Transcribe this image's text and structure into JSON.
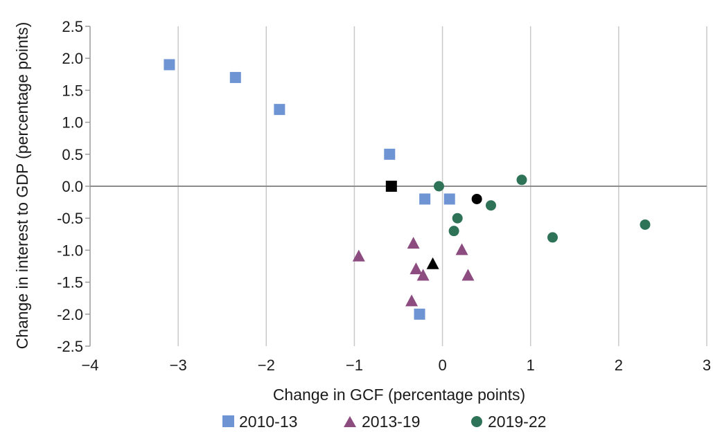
{
  "chart_data": {
    "type": "scatter",
    "title": "",
    "xlabel": "Change in GCF (percentage points)",
    "ylabel": "Change in interest to GDP (percentage points)",
    "xlim": [
      -4,
      3
    ],
    "ylim": [
      -2.5,
      2.5
    ],
    "x_ticks": [
      -4,
      -3,
      -2,
      -1,
      0,
      1,
      2,
      3
    ],
    "x_tick_labels": [
      "−4",
      "−3",
      "−2",
      "−1",
      "0",
      "1",
      "2",
      "3"
    ],
    "y_ticks": [
      2.5,
      2.0,
      1.5,
      1.0,
      0.5,
      0.0,
      -0.5,
      -1.0,
      -1.5,
      -2.0,
      -2.5
    ],
    "y_tick_labels": [
      "2.5",
      "2.0",
      "1.5",
      "1.0",
      "0.5",
      "0.0",
      "-0.5",
      "-1.0",
      "-1.5",
      "-2.0",
      "-2.5"
    ],
    "grid": "vertical",
    "legend_position": "bottom",
    "series": [
      {
        "name": "2010-13",
        "marker": "square",
        "color": "#6f94d4",
        "points": [
          {
            "x": -3.1,
            "y": 1.9
          },
          {
            "x": -2.35,
            "y": 1.7
          },
          {
            "x": -1.85,
            "y": 1.2
          },
          {
            "x": -0.6,
            "y": 0.5
          },
          {
            "x": -0.2,
            "y": -0.2
          },
          {
            "x": 0.08,
            "y": -0.2
          },
          {
            "x": -0.26,
            "y": -2.0
          }
        ],
        "average": {
          "x": -0.58,
          "y": 0.0
        }
      },
      {
        "name": "2013-19",
        "marker": "triangle",
        "color": "#8c4c80",
        "points": [
          {
            "x": -0.95,
            "y": -1.1
          },
          {
            "x": -0.33,
            "y": -0.9
          },
          {
            "x": 0.22,
            "y": -1.0
          },
          {
            "x": -0.3,
            "y": -1.3
          },
          {
            "x": -0.22,
            "y": -1.4
          },
          {
            "x": 0.29,
            "y": -1.4
          },
          {
            "x": -0.35,
            "y": -1.8
          }
        ],
        "average": {
          "x": -0.11,
          "y": -1.22
        }
      },
      {
        "name": "2019-22",
        "marker": "circle",
        "color": "#2e7257",
        "points": [
          {
            "x": -0.04,
            "y": 0.0
          },
          {
            "x": 0.9,
            "y": 0.1
          },
          {
            "x": 0.55,
            "y": -0.3
          },
          {
            "x": 0.17,
            "y": -0.5
          },
          {
            "x": 0.13,
            "y": -0.7
          },
          {
            "x": 1.25,
            "y": -0.8
          },
          {
            "x": 2.3,
            "y": -0.6
          }
        ],
        "average": {
          "x": 0.39,
          "y": -0.2
        }
      }
    ],
    "average_color": "#000000"
  }
}
